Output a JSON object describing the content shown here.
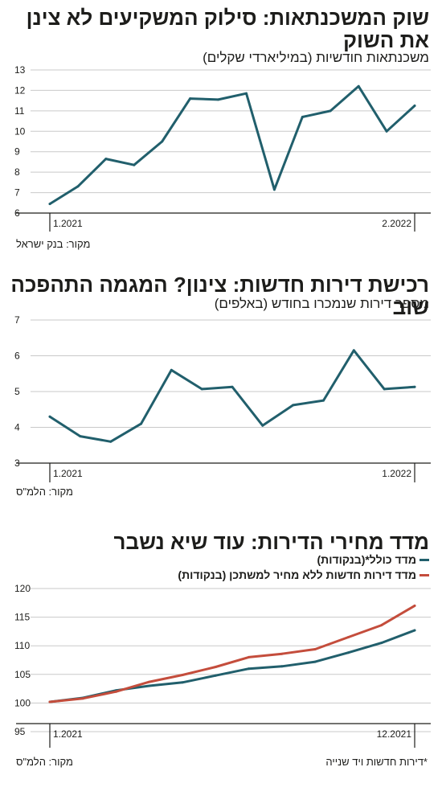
{
  "colors": {
    "teal": "#215f6c",
    "red": "#c44d3c",
    "grid": "#c9c9c9",
    "axis": "#1d1d1b"
  },
  "chart_data": [
    {
      "type": "line",
      "title": "שוק המשכנתאות: סילוק המשקיעים לא צינן את השוק",
      "subtitle": "משכנתאות חודשיות (במיליארדי שקלים)",
      "source": "מקור: בנק ישראל",
      "x_labels": [
        "1.2021",
        "2.2022"
      ],
      "yticks": [
        6,
        7,
        8,
        9,
        10,
        11,
        12,
        13
      ],
      "ylim": [
        6,
        13
      ],
      "grid": true,
      "series": [
        {
          "color": "#215f6c",
          "values": [
            6.45,
            7.3,
            8.65,
            8.35,
            9.5,
            11.6,
            11.55,
            11.85,
            7.15,
            10.7,
            11.0,
            12.2,
            10.0,
            11.25
          ]
        }
      ]
    },
    {
      "type": "line",
      "title": "רכישת דירות חדשות: צינון? המגמה התהפכה שוב",
      "subtitle": "מספר דירות שנמכרו בחודש (באלפים)",
      "source": "מקור: הלמ\"ס",
      "x_labels": [
        "1.2021",
        "1.2022"
      ],
      "yticks": [
        3,
        4,
        5,
        6,
        7
      ],
      "ylim": [
        3,
        7
      ],
      "grid": true,
      "series": [
        {
          "color": "#215f6c",
          "values": [
            4.3,
            3.75,
            3.6,
            4.1,
            5.6,
            5.07,
            5.13,
            4.05,
            4.62,
            4.75,
            6.15,
            5.07,
            5.13
          ]
        }
      ]
    },
    {
      "type": "line",
      "title": "מדד מחירי הדירות: עוד שיא נשבר",
      "source": "מקור: הלמ\"ס",
      "footnote": "*דירות חדשות ויד שנייה",
      "x_labels": [
        "1.2021",
        "12.2021"
      ],
      "yticks": [
        95,
        100,
        105,
        110,
        115,
        120
      ],
      "ylim": [
        95,
        120
      ],
      "grid": true,
      "legend": "top-right",
      "series": [
        {
          "name": "מדד כולל*(בנקודות)",
          "color": "#215f6c",
          "values": [
            100.2,
            100.9,
            102.2,
            103.0,
            103.6,
            104.8,
            106.0,
            106.4,
            107.2,
            108.8,
            110.5,
            112.7
          ]
        },
        {
          "name": "מדד דירות חדשות ללא מחיר למשתכן (בנקודות)",
          "color": "#c44d3c",
          "values": [
            100.2,
            100.8,
            102.0,
            103.7,
            104.9,
            106.3,
            108.0,
            108.6,
            109.4,
            111.5,
            113.6,
            117.0
          ]
        }
      ]
    }
  ]
}
